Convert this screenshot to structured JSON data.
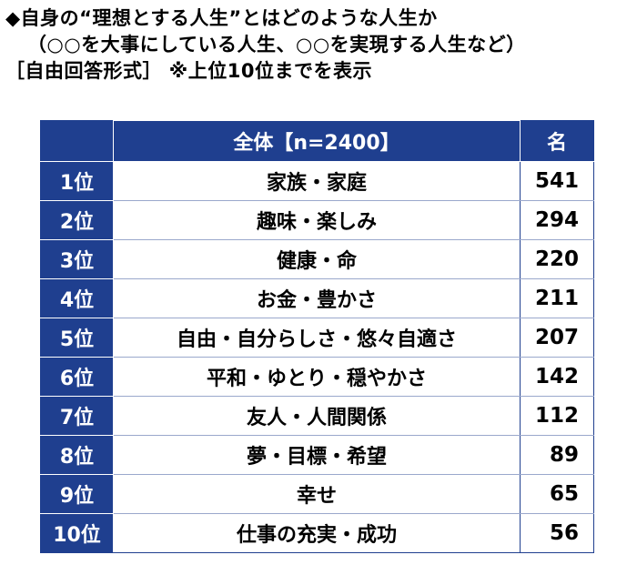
{
  "title": {
    "line1": "◆自身の“理想とする人生”とはどのような人生か",
    "line2": "（○○を大事にしている人生、○○を実現する人生など）",
    "line3": "［自由回答形式］ ※上位10位までを表示"
  },
  "table": {
    "header": {
      "answer": "全体【n=2400】",
      "count": "名"
    },
    "rows": [
      {
        "rank": "1位",
        "answer": "家族・家庭",
        "count": "541"
      },
      {
        "rank": "2位",
        "answer": "趣味・楽しみ",
        "count": "294"
      },
      {
        "rank": "3位",
        "answer": "健康・命",
        "count": "220"
      },
      {
        "rank": "4位",
        "answer": "お金・豊かさ",
        "count": "211"
      },
      {
        "rank": "5位",
        "answer": "自由・自分らしさ・悠々自適さ",
        "count": "207"
      },
      {
        "rank": "6位",
        "answer": "平和・ゆとり・穏やかさ",
        "count": "142"
      },
      {
        "rank": "7位",
        "answer": "友人・人間関係",
        "count": "112"
      },
      {
        "rank": "8位",
        "answer": "夢・目標・希望",
        "count": "89"
      },
      {
        "rank": "9位",
        "answer": "幸せ",
        "count": "65"
      },
      {
        "rank": "10位",
        "answer": "仕事の充実・成功",
        "count": "56"
      }
    ]
  },
  "colors": {
    "header_bg": "#1f3f8f",
    "header_text": "#ffffff",
    "body_bg": "#ffffff"
  }
}
